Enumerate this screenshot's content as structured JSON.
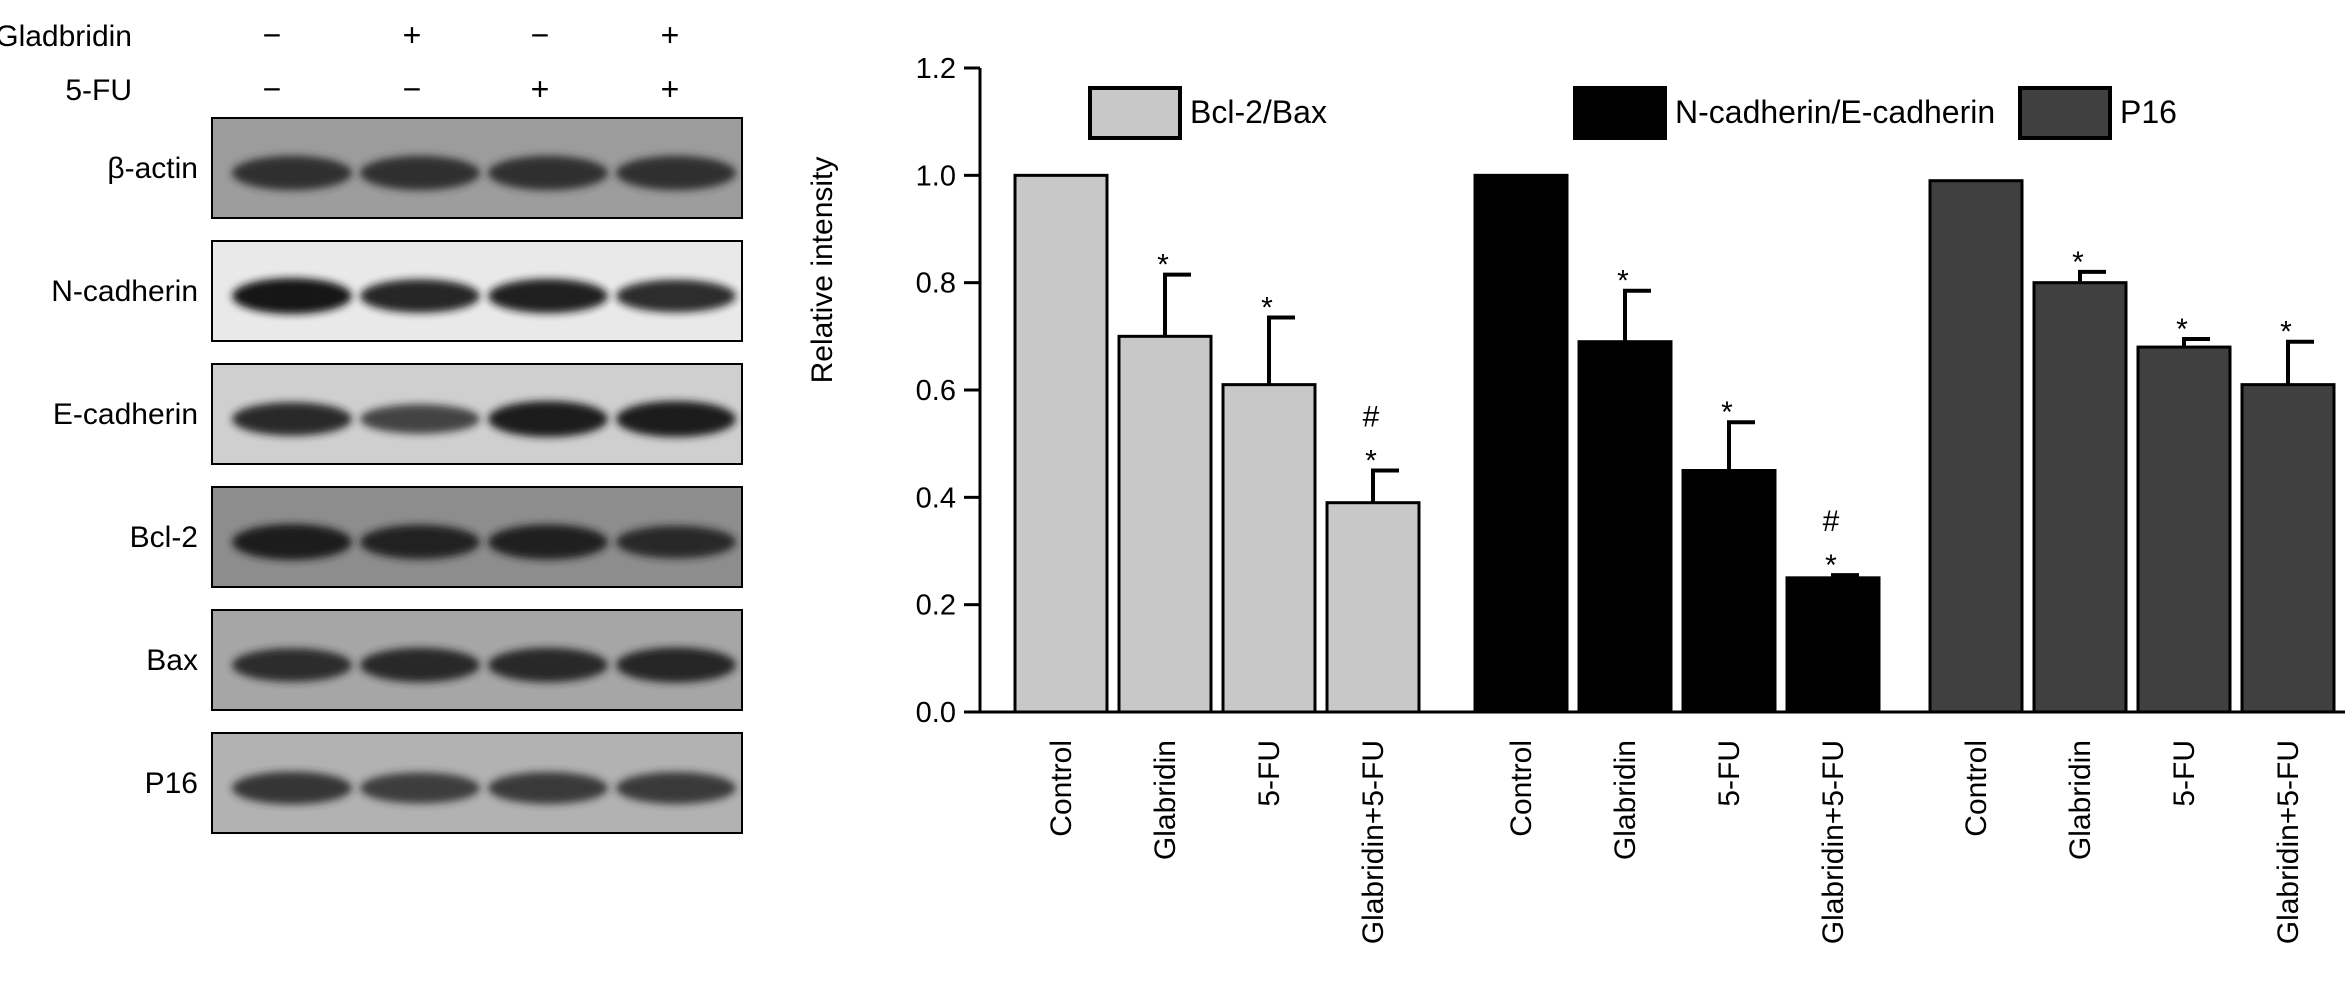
{
  "western_blot": {
    "treatments": [
      {
        "label": "Gladbridin",
        "signs": [
          "−",
          "+",
          "−",
          "+"
        ]
      },
      {
        "label": "5-FU",
        "signs": [
          "−",
          "−",
          "+",
          "+"
        ]
      }
    ],
    "bands": [
      {
        "label": "β-actin",
        "tone": "#2a2a2a",
        "bg": "#9c9c9c",
        "intensity": [
          0.9,
          0.9,
          0.9,
          0.9
        ]
      },
      {
        "label": "N-cadherin",
        "tone": "#141414",
        "bg": "#e9e9e9",
        "intensity": [
          1.0,
          0.85,
          0.9,
          0.8
        ]
      },
      {
        "label": "E-cadherin",
        "tone": "#1a1a1a",
        "bg": "#cfcfcf",
        "intensity": [
          0.85,
          0.6,
          1.0,
          1.0
        ]
      },
      {
        "label": "Bcl-2",
        "tone": "#1c1c1c",
        "bg": "#8d8d8d",
        "intensity": [
          1.0,
          0.9,
          0.95,
          0.8
        ]
      },
      {
        "label": "Bax",
        "tone": "#202020",
        "bg": "#a6a6a6",
        "intensity": [
          0.85,
          0.9,
          0.9,
          0.95
        ]
      },
      {
        "label": "P16",
        "tone": "#262626",
        "bg": "#b2b2b2",
        "intensity": [
          0.8,
          0.7,
          0.75,
          0.75
        ]
      }
    ]
  },
  "chart_data": {
    "type": "bar",
    "ylabel": "Relative intensity",
    "ylim": [
      0,
      1.2
    ],
    "yticks": [
      "0.0",
      "0.2",
      "0.4",
      "0.6",
      "0.8",
      "1.0",
      "1.2"
    ],
    "categories": [
      "Control",
      "Glabridin",
      "5-FU",
      "Glabridin+5-FU"
    ],
    "legend_position": "top",
    "series": [
      {
        "name": "Bcl-2/Bax",
        "color": "#c8c8c8",
        "values": [
          1.0,
          0.7,
          0.61,
          0.39
        ],
        "errors": [
          0,
          0.115,
          0.125,
          0.06
        ],
        "annotations": [
          "",
          "*",
          "*",
          "#\n*"
        ]
      },
      {
        "name": "N-cadherin/E-cadherin",
        "color": "#000000",
        "values": [
          1.0,
          0.69,
          0.45,
          0.25
        ],
        "errors": [
          0,
          0.095,
          0.09,
          0.005
        ],
        "annotations": [
          "",
          "*",
          "*",
          "#\n*"
        ]
      },
      {
        "name": "P16",
        "color": "#404040",
        "values": [
          0.99,
          0.8,
          0.68,
          0.61
        ],
        "errors": [
          0,
          0.02,
          0.015,
          0.08
        ],
        "annotations": [
          "",
          "*",
          "*",
          "*"
        ]
      }
    ]
  }
}
